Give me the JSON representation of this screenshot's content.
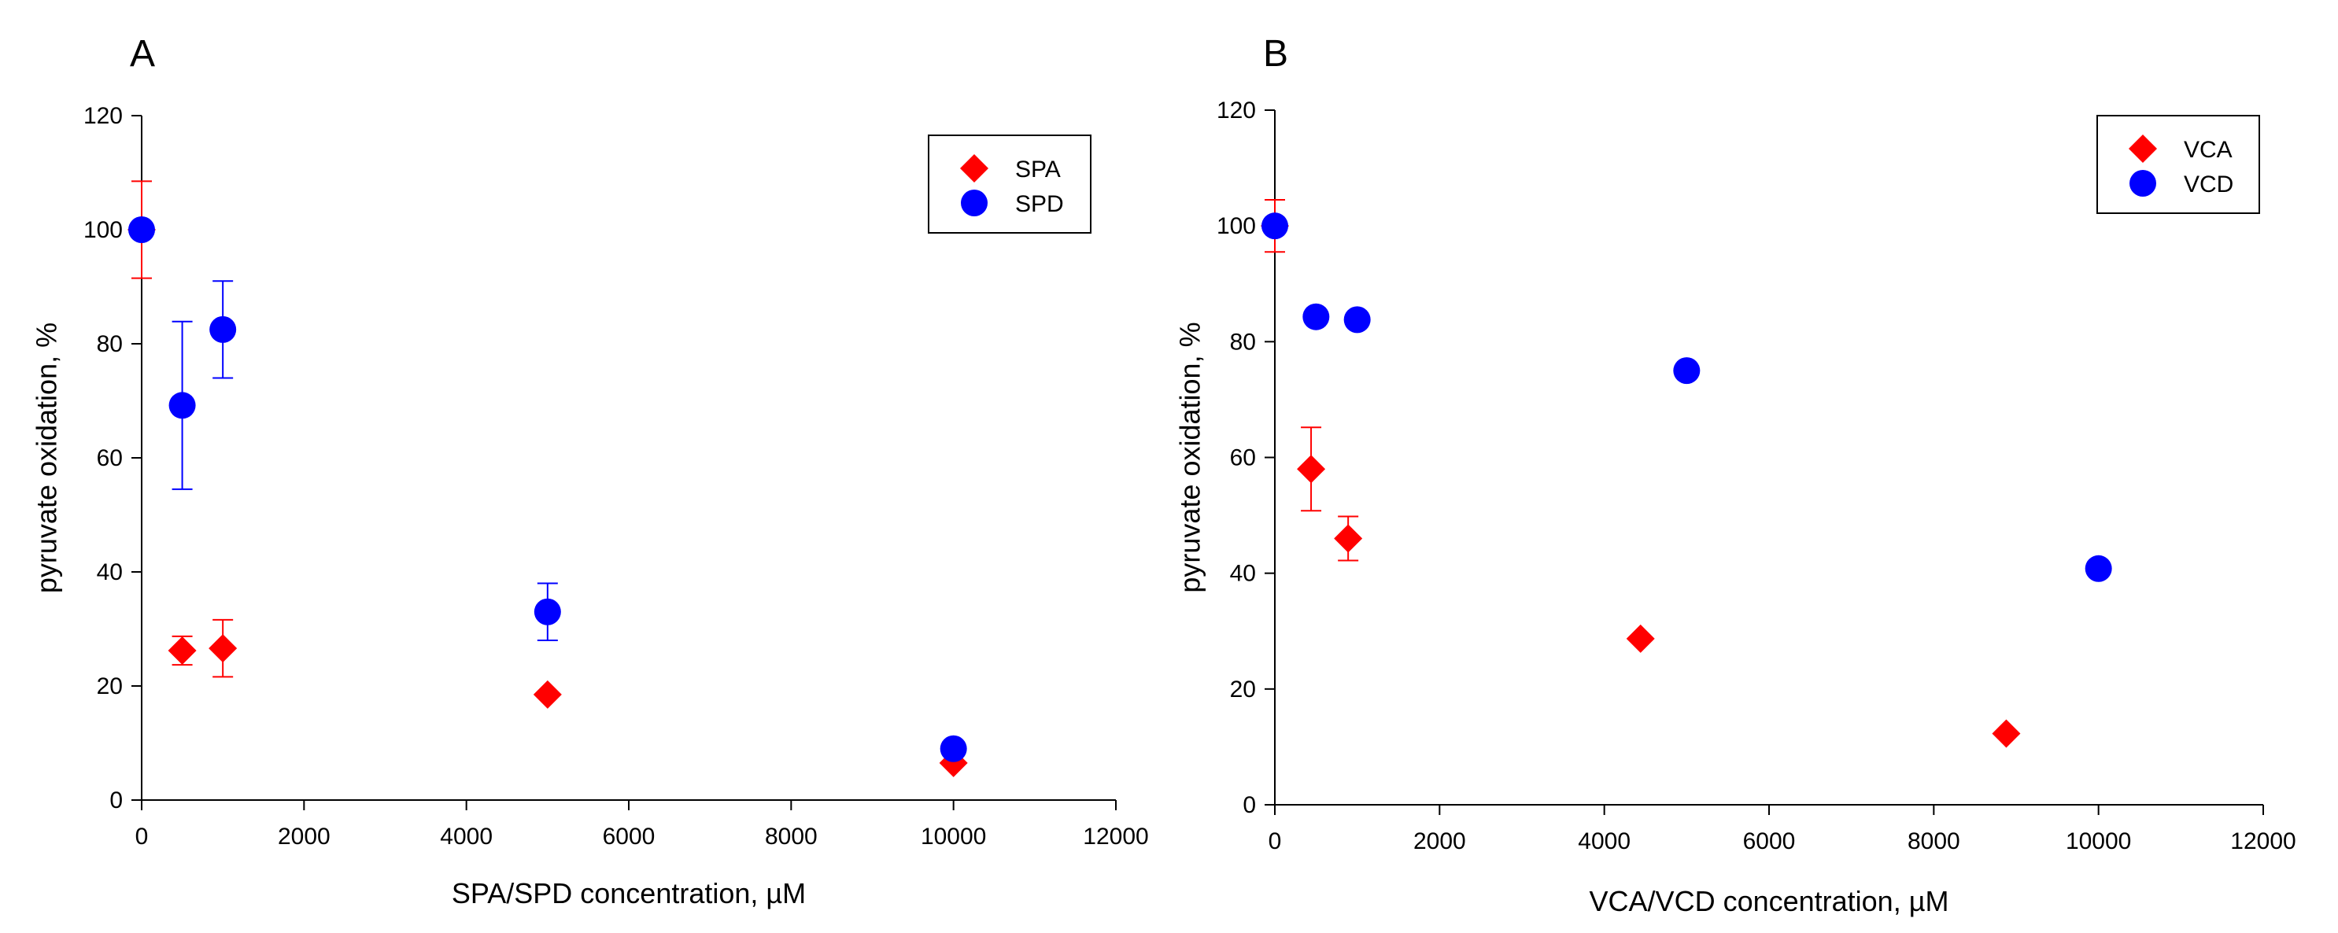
{
  "chart_data": [
    {
      "panel": "A",
      "type": "scatter",
      "xlabel": "SPA/SPD concentration, µM",
      "ylabel": "pyruvate oxidation, %",
      "xlim": [
        0,
        12000
      ],
      "ylim": [
        0,
        120
      ],
      "xticks": [
        0,
        2000,
        4000,
        6000,
        8000,
        10000,
        12000
      ],
      "yticks": [
        0,
        20,
        40,
        60,
        80,
        100,
        120
      ],
      "legend_position": "top-right",
      "grid": false,
      "series": [
        {
          "name": "SPA",
          "marker": "diamond",
          "color": "#ff0000",
          "points": [
            {
              "x": 0,
              "y": 100,
              "err": 8.5
            },
            {
              "x": 500,
              "y": 26.2,
              "err": 2.5
            },
            {
              "x": 1000,
              "y": 26.6,
              "err": 5
            },
            {
              "x": 5000,
              "y": 18.5,
              "err": null
            },
            {
              "x": 10000,
              "y": 6.5,
              "err": null
            }
          ]
        },
        {
          "name": "SPD",
          "marker": "circle",
          "color": "#0000ff",
          "points": [
            {
              "x": 0,
              "y": 100,
              "err": null
            },
            {
              "x": 500,
              "y": 69.2,
              "err": 14.7
            },
            {
              "x": 1000,
              "y": 82.5,
              "err": 8.5
            },
            {
              "x": 5000,
              "y": 33,
              "err": 5
            },
            {
              "x": 10000,
              "y": 9,
              "err": null
            }
          ]
        }
      ]
    },
    {
      "panel": "B",
      "type": "scatter",
      "xlabel": "VCA/VCD concentration, µM",
      "ylabel": "pyruvate oxidation, %",
      "xlim": [
        0,
        12000
      ],
      "ylim": [
        0,
        120
      ],
      "xticks": [
        0,
        2000,
        4000,
        6000,
        8000,
        10000,
        12000
      ],
      "yticks": [
        0,
        20,
        40,
        60,
        80,
        100,
        120
      ],
      "legend_position": "top-right",
      "grid": false,
      "series": [
        {
          "name": "VCA",
          "marker": "diamond",
          "color": "#ff0000",
          "points": [
            {
              "x": 0,
              "y": 100,
              "err": 4.5
            },
            {
              "x": 440,
              "y": 58,
              "err": 7.2
            },
            {
              "x": 890,
              "y": 46,
              "err": 3.8
            },
            {
              "x": 4440,
              "y": 28.7,
              "err": null
            },
            {
              "x": 8880,
              "y": 12.3,
              "err": null
            }
          ]
        },
        {
          "name": "VCD",
          "marker": "circle",
          "color": "#0000ff",
          "points": [
            {
              "x": 0,
              "y": 100,
              "err": null
            },
            {
              "x": 500,
              "y": 84.3,
              "err": null
            },
            {
              "x": 1000,
              "y": 83.8,
              "err": null
            },
            {
              "x": 5000,
              "y": 75,
              "err": null
            },
            {
              "x": 10000,
              "y": 40.8,
              "err": null
            }
          ]
        }
      ]
    }
  ]
}
